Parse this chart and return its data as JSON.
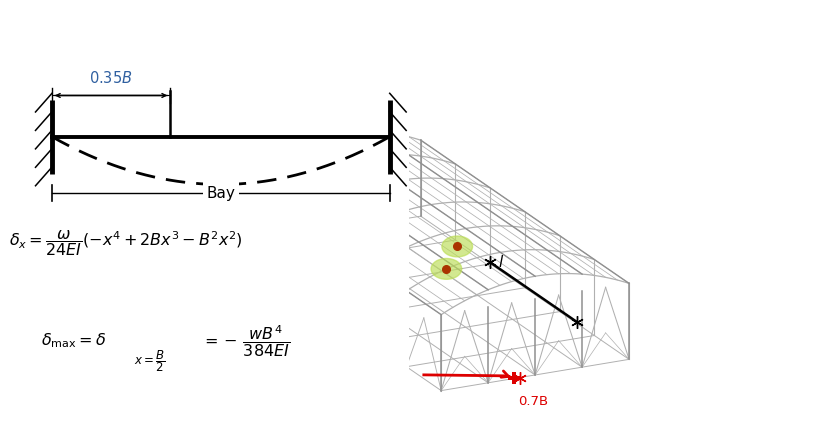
{
  "bg_color": "#ffffff",
  "steel_color": "#b0b0b0",
  "steel_color_dark": "#909090",
  "beam_lw": 1.0,
  "sensor_green": "#bbdd55",
  "sensor_red": "#aa3300",
  "arrow_red": "#dd0000",
  "arrow_black": "#000000",
  "label_07B": "0.7B",
  "label_l": "$l$",
  "label_035B": "$0.35B$",
  "label_bay": "Bay",
  "formula1": "$\\delta_x = \\dfrac{\\omega}{24EI}\\left(-x^4+2Bx^3-B^2x^2\\right)$",
  "formula2a": "$\\delta_{\\mathrm{max}} = \\delta$",
  "formula2b": "$x=\\dfrac{B}{2}$",
  "formula2c": "$= -\\,\\dfrac{wB^4}{384EI}$"
}
